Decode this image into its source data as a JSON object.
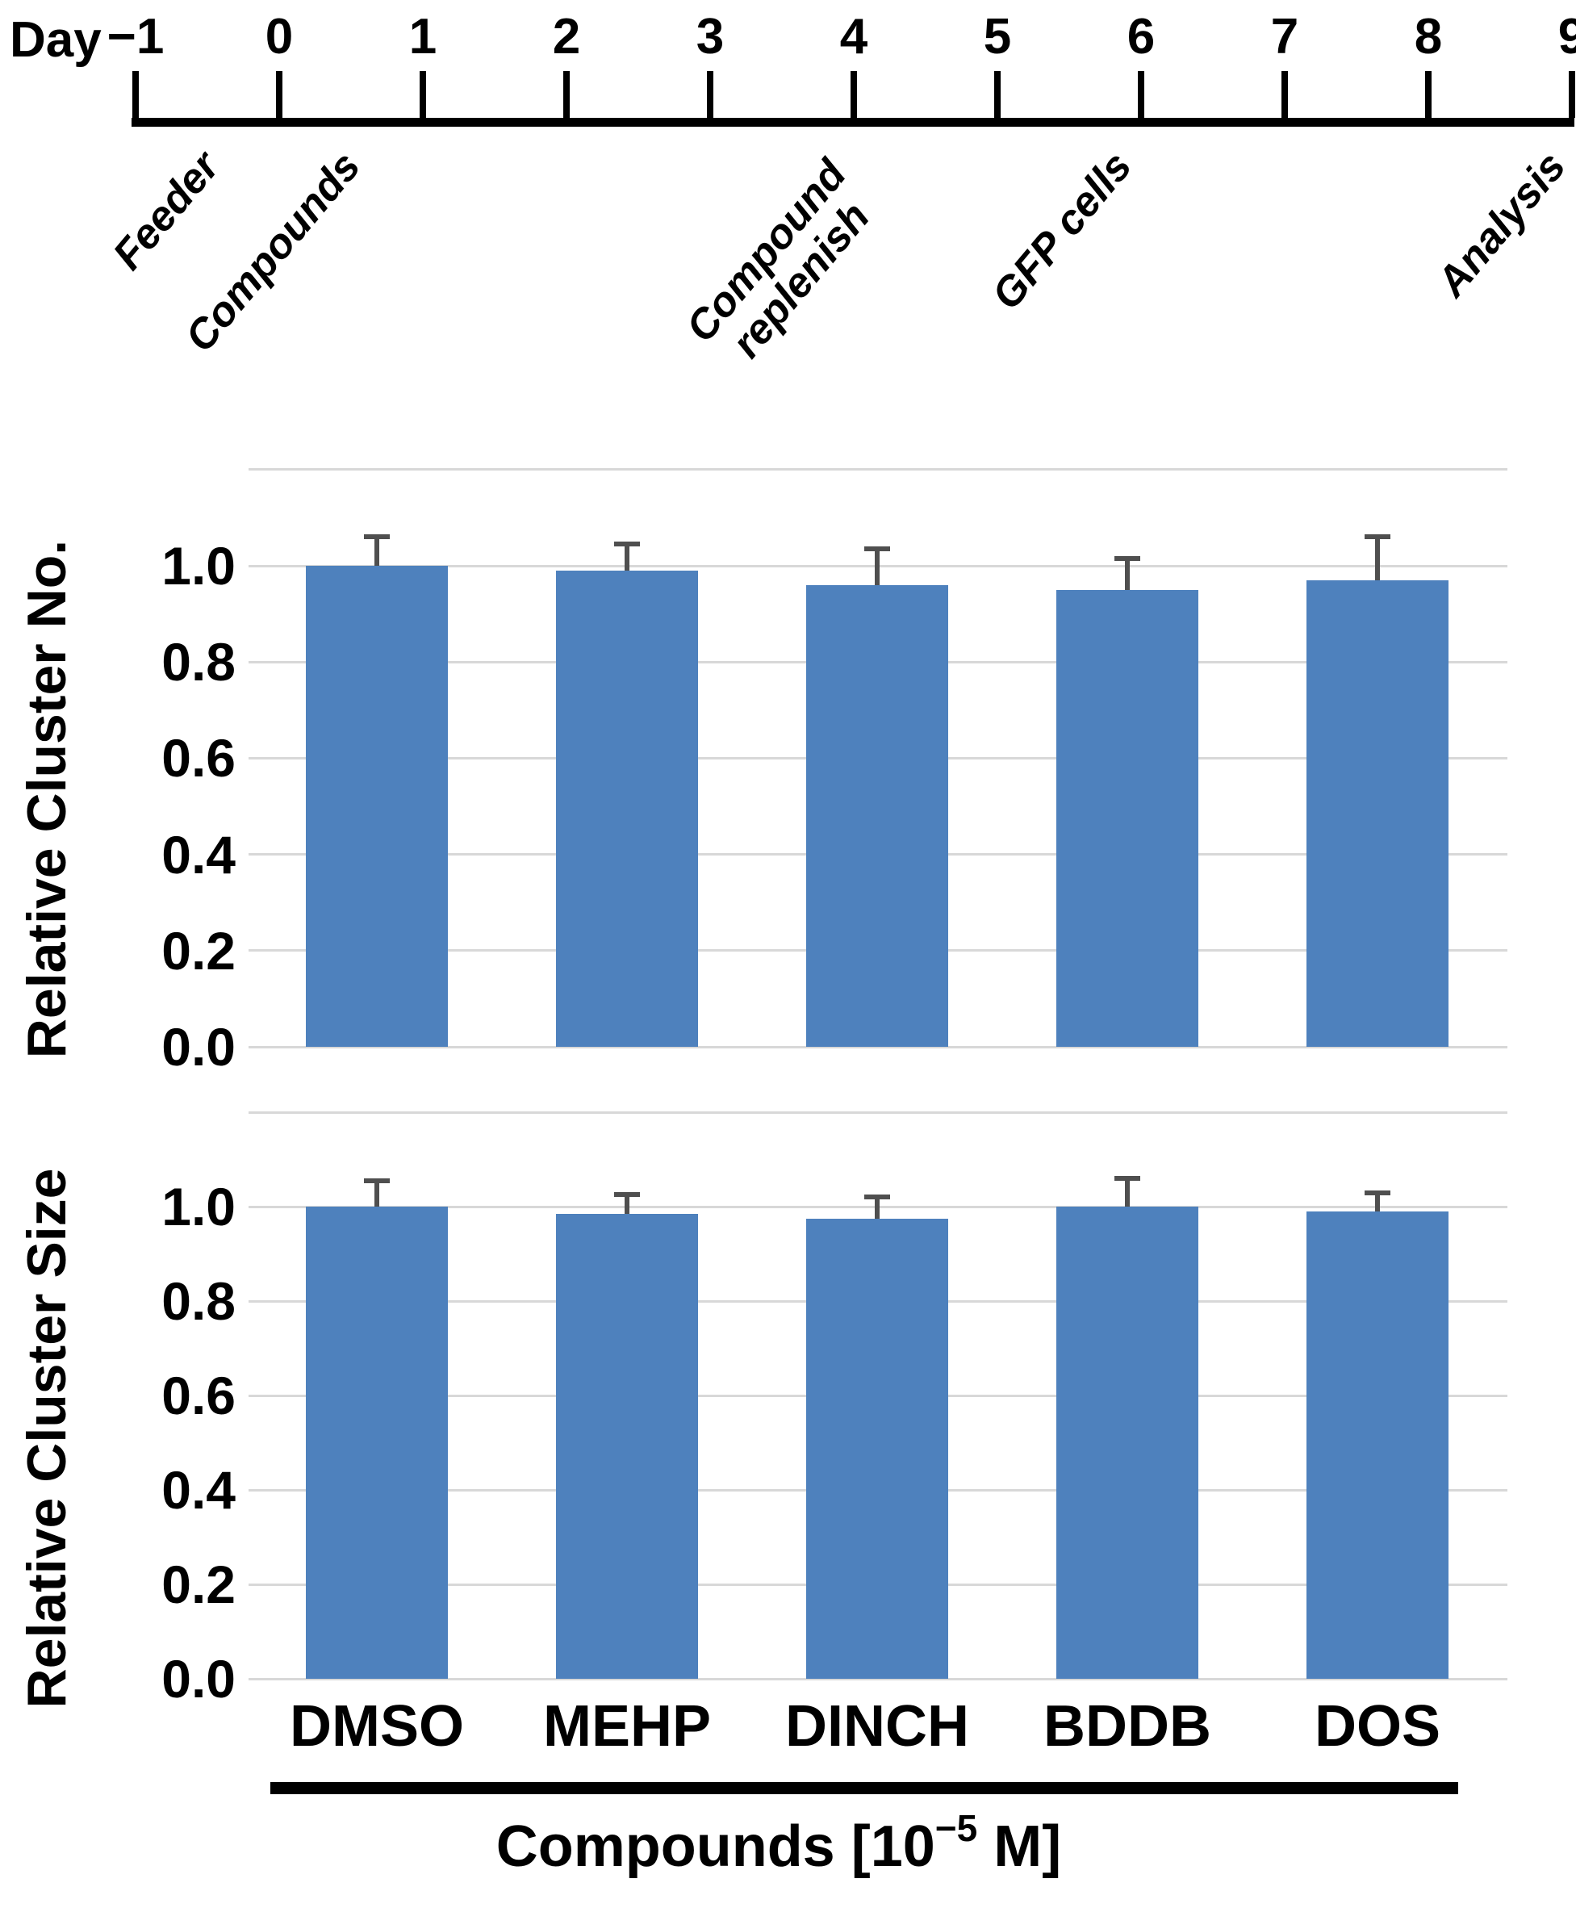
{
  "timeline": {
    "axis_prefix": "Day",
    "day_labels": [
      "−1",
      "0",
      "1",
      "2",
      "3",
      "4",
      "5",
      "6",
      "7",
      "8",
      "9"
    ],
    "events": [
      {
        "label": "Feeder",
        "lines": [
          "Feeder"
        ],
        "at_day": "−1"
      },
      {
        "label": "Compounds",
        "lines": [
          "Compounds"
        ],
        "at_day": "0"
      },
      {
        "label": "Compound replenish",
        "lines": [
          "Compound",
          "replenish"
        ],
        "at_day": "3"
      },
      {
        "label": "GFP cells",
        "lines": [
          "GFP cells"
        ],
        "at_day": "6"
      },
      {
        "label": "Analysis",
        "lines": [
          "Analysis"
        ],
        "at_day": "9"
      }
    ]
  },
  "chart_data": [
    {
      "type": "bar",
      "title": "",
      "ylabel": "Relative Cluster No.",
      "xlabel": "",
      "categories": [
        "DMSO",
        "MEHP",
        "DINCH",
        "BDDB",
        "DOS"
      ],
      "values": [
        1.0,
        0.99,
        0.96,
        0.95,
        0.97
      ],
      "errors_plus": [
        0.065,
        0.06,
        0.08,
        0.07,
        0.095
      ],
      "ylim": [
        0,
        1.2
      ],
      "yticks": [
        1.0,
        0.8,
        0.6,
        0.4,
        0.2,
        0.0
      ],
      "grid": true,
      "grid_max": 1.2,
      "legend": "none"
    },
    {
      "type": "bar",
      "title": "",
      "ylabel": "Relative Cluster Size",
      "xlabel": "",
      "categories": [
        "DMSO",
        "MEHP",
        "DINCH",
        "BDDB",
        "DOS"
      ],
      "values": [
        1.0,
        0.985,
        0.975,
        1.0,
        0.99
      ],
      "errors_plus": [
        0.06,
        0.045,
        0.05,
        0.065,
        0.045
      ],
      "ylim": [
        0,
        1.2
      ],
      "yticks": [
        1.0,
        0.8,
        0.6,
        0.4,
        0.2,
        0.0
      ],
      "grid": true,
      "grid_max": 1.2,
      "legend": "none"
    }
  ],
  "x_axis_title": {
    "prefix": "Compounds [10",
    "sup": "−5",
    "suffix": " M]"
  },
  "colors": {
    "bar": "#4e81bd",
    "gridline": "#d8d8d8",
    "error_bar": "#4f4f4f",
    "text": "#000000",
    "timeline": "#000000"
  }
}
